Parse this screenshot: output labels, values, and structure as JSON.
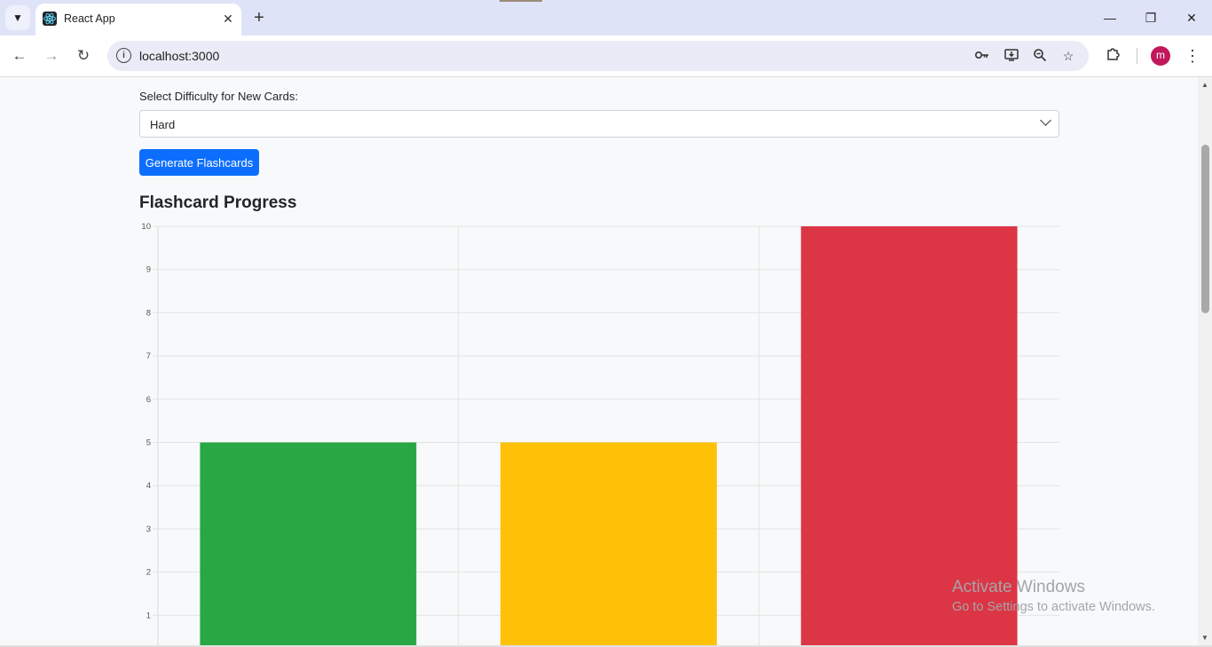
{
  "browser": {
    "tab_title": "React App",
    "tab_close_glyph": "✕",
    "new_tab_glyph": "+",
    "url": "localhost:3000",
    "avatar_letter": "m",
    "avatar_color": "#c2185b",
    "window_controls": {
      "minimize": "—",
      "restore": "❐",
      "close": "✕"
    }
  },
  "form": {
    "difficulty_label": "Select Difficulty for New Cards:",
    "difficulty_value": "Hard",
    "generate_button_label": "Generate Flashcards",
    "button_color": "#0d6efd"
  },
  "chart": {
    "title": "Flashcard Progress"
  },
  "chart_data": {
    "type": "bar",
    "title": "Flashcard Progress",
    "categories": [
      "",
      "",
      ""
    ],
    "values": [
      5,
      5,
      10
    ],
    "colors": [
      "#28a745",
      "#ffc107",
      "#dc3545"
    ],
    "ylim": [
      0,
      10
    ],
    "yticks": [
      "1",
      "2",
      "3",
      "4",
      "5",
      "6",
      "7",
      "8",
      "9",
      "10"
    ],
    "grid": true,
    "xlabel": "",
    "ylabel": ""
  },
  "watermark": {
    "line1": "Activate Windows",
    "line2": "Go to Settings to activate Windows."
  }
}
